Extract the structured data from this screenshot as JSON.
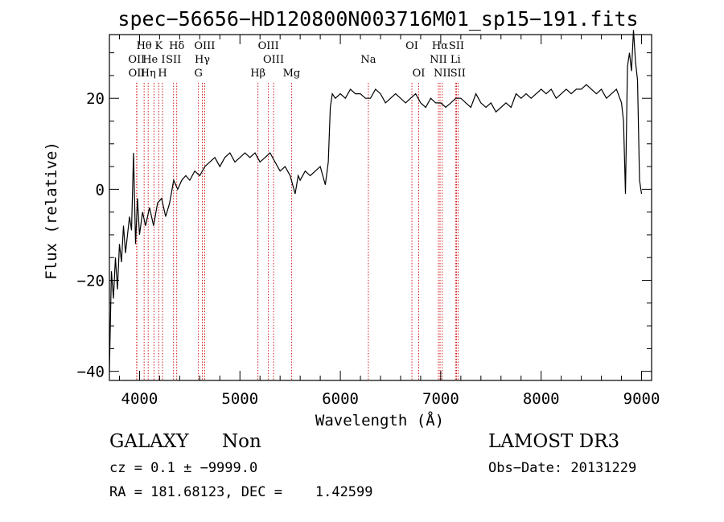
{
  "chart_data": {
    "type": "line",
    "title": "spec−56656−HD120800N003716M01_sp15−191.fits",
    "xlabel": "Wavelength (Å)",
    "ylabel": "Flux (relative)",
    "xlim": [
      3700,
      9100
    ],
    "ylim": [
      -42,
      34
    ],
    "xticks": [
      4000,
      5000,
      6000,
      7000,
      8000,
      9000
    ],
    "yticks": [
      -40,
      -20,
      0,
      20
    ],
    "xtick_labels": [
      "4000",
      "5000",
      "6000",
      "7000",
      "8000",
      "9000"
    ],
    "ytick_labels": [
      "−40",
      "−20",
      "0",
      "20"
    ],
    "series": [
      {
        "x": [
          3700,
          3720,
          3740,
          3760,
          3780,
          3800,
          3820,
          3840,
          3860,
          3880,
          3900,
          3920,
          3940,
          3960,
          3980,
          4000,
          4030,
          4060,
          4100,
          4140,
          4180,
          4220,
          4260,
          4300,
          4340,
          4380,
          4420,
          4460,
          4500,
          4550,
          4600,
          4650,
          4700,
          4750,
          4800,
          4850,
          4900,
          4950,
          5000,
          5050,
          5100,
          5150,
          5200,
          5250,
          5300,
          5350,
          5400,
          5450,
          5500,
          5550,
          5580,
          5600,
          5650,
          5700,
          5750,
          5800,
          5850,
          5880,
          5900,
          5920,
          5950,
          6000,
          6050,
          6100,
          6150,
          6200,
          6250,
          6300,
          6350,
          6400,
          6450,
          6500,
          6550,
          6600,
          6650,
          6700,
          6750,
          6800,
          6850,
          6900,
          6950,
          7000,
          7050,
          7100,
          7150,
          7200,
          7250,
          7300,
          7350,
          7400,
          7450,
          7500,
          7550,
          7600,
          7650,
          7700,
          7750,
          7800,
          7850,
          7900,
          7950,
          8000,
          8050,
          8100,
          8150,
          8200,
          8250,
          8300,
          8350,
          8400,
          8450,
          8500,
          8550,
          8600,
          8650,
          8700,
          8750,
          8800,
          8820,
          8840,
          8860,
          8880,
          8900,
          8920,
          8940,
          8960,
          8980,
          9000
        ],
        "y": [
          -40,
          -18,
          -24,
          -15,
          -22,
          -12,
          -16,
          -8,
          -14,
          -10,
          -6,
          -9,
          8,
          -12,
          -2,
          -10,
          -5,
          -8,
          -4,
          -8,
          -3,
          -2,
          -6,
          -3,
          2,
          0,
          2,
          3,
          2,
          4,
          3,
          5,
          6,
          7,
          5,
          7,
          8,
          6,
          7,
          8,
          7,
          8,
          6,
          7,
          8,
          6,
          4,
          5,
          3,
          -1,
          3,
          2,
          4,
          3,
          4,
          5,
          1,
          6,
          18,
          21,
          20,
          21,
          20,
          22,
          21,
          21,
          20,
          20,
          22,
          21,
          19,
          20,
          21,
          20,
          19,
          20,
          21,
          19,
          18,
          20,
          19,
          19,
          18,
          19,
          20,
          20,
          19,
          18,
          21,
          19,
          18,
          19,
          17,
          18,
          19,
          18,
          21,
          20,
          21,
          20,
          21,
          22,
          21,
          22,
          20,
          21,
          22,
          21,
          22,
          22,
          23,
          22,
          21,
          22,
          20,
          21,
          22,
          19,
          15,
          -1,
          27,
          30,
          26,
          35,
          28,
          24,
          2,
          -1
        ]
      }
    ],
    "lines": [
      {
        "label": "Hθ",
        "x": 3797,
        "row": 0
      },
      {
        "label": "OII",
        "x": 3727,
        "row": 1
      },
      {
        "label": "OII",
        "x": 3729,
        "row": 2
      },
      {
        "label": "He I",
        "x": 3889,
        "row": 1
      },
      {
        "label": "Hη",
        "x": 3835,
        "row": 2
      },
      {
        "label": "K",
        "x": 3934,
        "row": 0
      },
      {
        "label": "H",
        "x": 3969,
        "row": 2
      },
      {
        "label": "Hδ",
        "x": 4102,
        "row": 0
      },
      {
        "label": "SII",
        "x": 4072,
        "row": 1
      },
      {
        "label": "OIII",
        "x": 4363,
        "row": 0
      },
      {
        "label": "Hγ",
        "x": 4341,
        "row": 1
      },
      {
        "label": "G",
        "x": 4305,
        "row": 2
      },
      {
        "label": "OIII",
        "x": 4959,
        "row": 0
      },
      {
        "label": "OIII",
        "x": 5007,
        "row": 1
      },
      {
        "label": "Hβ",
        "x": 4861,
        "row": 2
      },
      {
        "label": "Mg",
        "x": 5175,
        "row": 2
      },
      {
        "label": "Na",
        "x": 5893,
        "row": 1
      },
      {
        "label": "OI",
        "x": 6300,
        "row": 0
      },
      {
        "label": "OI",
        "x": 6364,
        "row": 2
      },
      {
        "label": "Hα",
        "x": 6563,
        "row": 0
      },
      {
        "label": "NII",
        "x": 6548,
        "row": 1
      },
      {
        "label": "NII",
        "x": 6584,
        "row": 2
      },
      {
        "label": "SII",
        "x": 6717,
        "row": 0
      },
      {
        "label": "Li",
        "x": 6708,
        "row": 1
      },
      {
        "label": "SII",
        "x": 6731,
        "row": 2
      }
    ]
  },
  "info": {
    "class": "GALAXY",
    "subclass": "Non",
    "survey": "LAMOST DR3",
    "cz": "cz = 0.1 ± −9999.0",
    "obsdate": "Obs−Date: 20131229",
    "radec": "RA = 181.68123, DEC =    1.42599"
  },
  "colors": {
    "axis": "#000000",
    "spectrum": "#000000",
    "line_marker": "#cc0000",
    "background": "#ffffff"
  }
}
